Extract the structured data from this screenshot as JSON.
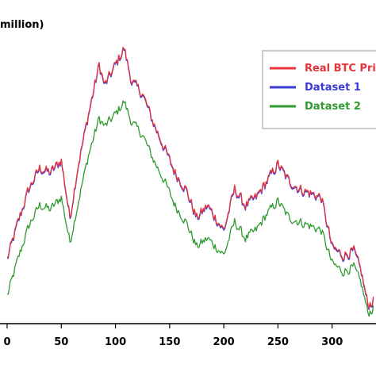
{
  "chart_data": {
    "type": "line",
    "ylabel": "million)",
    "xlim": [
      -3,
      342
    ],
    "ylim": [
      38,
      106
    ],
    "x_ticks": [
      0,
      50,
      100,
      150,
      200,
      250,
      300
    ],
    "legend_position": "top-right",
    "grid": false,
    "keypoints": [
      {
        "x": 0,
        "real": 53,
        "d1": 52.5,
        "d2": 44
      },
      {
        "x": 10,
        "real": 62,
        "d1": 61.5,
        "d2": 53
      },
      {
        "x": 20,
        "real": 70,
        "d1": 69.5,
        "d2": 61
      },
      {
        "x": 30,
        "real": 75,
        "d1": 74.5,
        "d2": 66
      },
      {
        "x": 40,
        "real": 74,
        "d1": 73.5,
        "d2": 65
      },
      {
        "x": 50,
        "real": 77,
        "d1": 76.5,
        "d2": 68
      },
      {
        "x": 58,
        "real": 63,
        "d1": 62.5,
        "d2": 57
      },
      {
        "x": 65,
        "real": 75,
        "d1": 74.5,
        "d2": 66
      },
      {
        "x": 75,
        "real": 88,
        "d1": 87.5,
        "d2": 78
      },
      {
        "x": 85,
        "real": 100,
        "d1": 99.5,
        "d2": 87
      },
      {
        "x": 90,
        "real": 95,
        "d1": 94.5,
        "d2": 85
      },
      {
        "x": 100,
        "real": 100,
        "d1": 99.5,
        "d2": 88
      },
      {
        "x": 108,
        "real": 104,
        "d1": 103.5,
        "d2": 91
      },
      {
        "x": 115,
        "real": 96,
        "d1": 95.5,
        "d2": 86
      },
      {
        "x": 125,
        "real": 93,
        "d1": 92.5,
        "d2": 83
      },
      {
        "x": 135,
        "real": 86,
        "d1": 85.5,
        "d2": 77
      },
      {
        "x": 145,
        "real": 80,
        "d1": 79.5,
        "d2": 72
      },
      {
        "x": 155,
        "real": 74,
        "d1": 73.5,
        "d2": 66
      },
      {
        "x": 165,
        "real": 70,
        "d1": 69.5,
        "d2": 62
      },
      {
        "x": 175,
        "real": 63,
        "d1": 62.5,
        "d2": 56
      },
      {
        "x": 185,
        "real": 66,
        "d1": 65.5,
        "d2": 58
      },
      {
        "x": 200,
        "real": 60,
        "d1": 59.5,
        "d2": 54
      },
      {
        "x": 210,
        "real": 70,
        "d1": 69.5,
        "d2": 62
      },
      {
        "x": 220,
        "real": 66,
        "d1": 65.5,
        "d2": 58
      },
      {
        "x": 230,
        "real": 68,
        "d1": 67.5,
        "d2": 60
      },
      {
        "x": 240,
        "real": 72,
        "d1": 71.5,
        "d2": 64
      },
      {
        "x": 250,
        "real": 76,
        "d1": 75.5,
        "d2": 67
      },
      {
        "x": 260,
        "real": 72,
        "d1": 71.5,
        "d2": 63
      },
      {
        "x": 270,
        "real": 70,
        "d1": 69.5,
        "d2": 62
      },
      {
        "x": 280,
        "real": 69,
        "d1": 68.5,
        "d2": 61
      },
      {
        "x": 290,
        "real": 68,
        "d1": 67.5,
        "d2": 60
      },
      {
        "x": 300,
        "real": 56,
        "d1": 55.5,
        "d2": 52
      },
      {
        "x": 310,
        "real": 54,
        "d1": 53.5,
        "d2": 50
      },
      {
        "x": 320,
        "real": 55,
        "d1": 54.5,
        "d2": 51
      },
      {
        "x": 327,
        "real": 50,
        "d1": 49.5,
        "d2": 47
      },
      {
        "x": 333,
        "real": 42,
        "d1": 41.5,
        "d2": 40
      },
      {
        "x": 338,
        "real": 43,
        "d1": 42.5,
        "d2": 41
      }
    ],
    "series": [
      {
        "key": "real",
        "name": "Real BTC Price",
        "color": "#e8333a"
      },
      {
        "key": "d1",
        "name": "Dataset 1",
        "color": "#3a3ad6"
      },
      {
        "key": "d2",
        "name": "Dataset 2",
        "color": "#2f9a2f"
      }
    ]
  }
}
